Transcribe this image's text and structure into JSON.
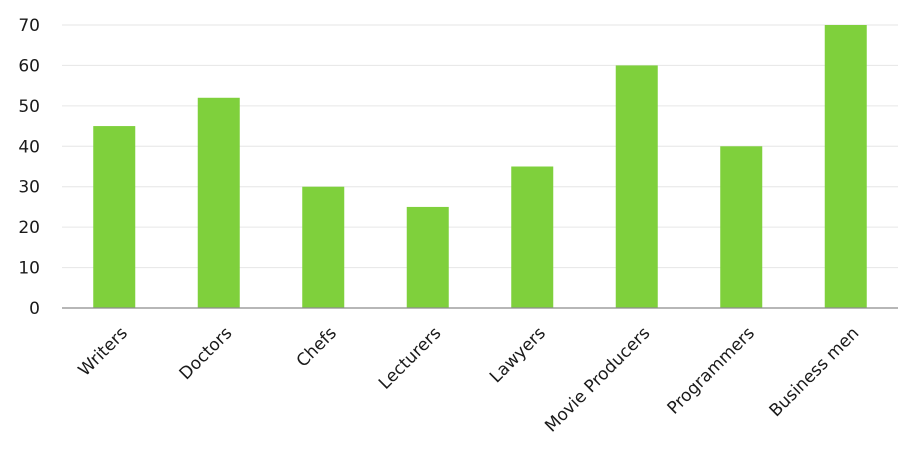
{
  "chart_data": {
    "type": "bar",
    "title": "",
    "xlabel": "",
    "ylabel": "",
    "categories": [
      "Writers",
      "Doctors",
      "Chefs",
      "Lecturers",
      "Lawyers",
      "Movie Producers",
      "Programmers",
      "Business men"
    ],
    "values": [
      45,
      52,
      30,
      25,
      35,
      60,
      40,
      70
    ],
    "ylim": [
      0,
      70
    ],
    "yticks": [
      "0",
      "10",
      "20",
      "30",
      "40",
      "50",
      "60",
      "70"
    ],
    "grid": true,
    "legend": "none",
    "bar_color": "#7fd03c"
  }
}
